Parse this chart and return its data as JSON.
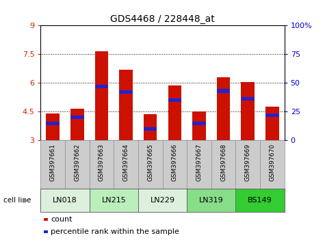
{
  "title": "GDS4468 / 228448_at",
  "samples": [
    "GSM397661",
    "GSM397662",
    "GSM397663",
    "GSM397664",
    "GSM397665",
    "GSM397666",
    "GSM397667",
    "GSM397668",
    "GSM397669",
    "GSM397670"
  ],
  "count_values": [
    4.4,
    4.65,
    7.65,
    6.7,
    4.35,
    5.85,
    4.5,
    6.3,
    6.05,
    4.75
  ],
  "percentile_values": [
    15,
    20,
    47,
    42,
    10,
    35,
    15,
    43,
    36,
    22
  ],
  "cell_lines": [
    {
      "label": "LN018",
      "start": 0,
      "end": 2
    },
    {
      "label": "LN215",
      "start": 2,
      "end": 4
    },
    {
      "label": "LN229",
      "start": 4,
      "end": 6
    },
    {
      "label": "LN319",
      "start": 6,
      "end": 8
    },
    {
      "label": "BS149",
      "start": 8,
      "end": 10
    }
  ],
  "cell_line_colors": [
    "#ddf0dd",
    "#bbeebb",
    "#ddf0dd",
    "#88dd88",
    "#33cc33"
  ],
  "ylim_left": [
    3,
    9
  ],
  "ylim_right": [
    0,
    100
  ],
  "yticks_left": [
    3,
    4.5,
    6,
    7.5,
    9
  ],
  "ytick_labels_left": [
    "3",
    "4.5",
    "6",
    "7.5",
    "9"
  ],
  "yticks_right": [
    0,
    25,
    50,
    75,
    100
  ],
  "ytick_labels_right": [
    "0",
    "25",
    "50",
    "75",
    "100%"
  ],
  "bar_color": "#cc1100",
  "percentile_color": "#2222cc",
  "bar_width": 0.55,
  "left_tick_color": "#cc2200",
  "right_tick_color": "#0000cc",
  "names_bg": "#cccccc",
  "grid_dotted_at": [
    4.5,
    6.0,
    7.5
  ]
}
